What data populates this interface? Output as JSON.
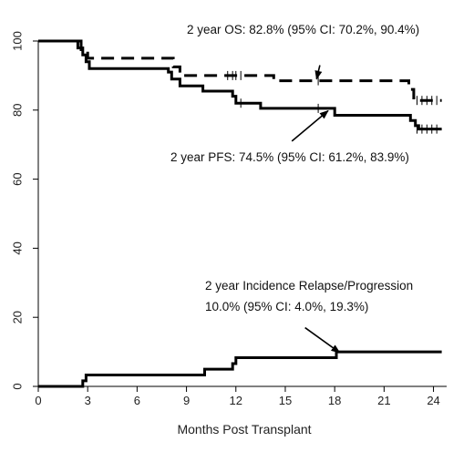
{
  "chart_data": {
    "type": "line",
    "title": "",
    "xlabel": "Months Post Transplant",
    "ylabel": "",
    "xlim": [
      0,
      24.8
    ],
    "ylim": [
      0,
      100
    ],
    "xticks": [
      0,
      3,
      6,
      9,
      12,
      15,
      18,
      21,
      24
    ],
    "yticks": [
      0,
      20,
      40,
      60,
      80,
      100
    ],
    "grid": false,
    "legend": "none",
    "series": [
      {
        "name": "",
        "style": "dashed",
        "color": "#000000",
        "steps": [
          [
            0,
            100
          ],
          [
            2.5,
            100
          ],
          [
            2.6,
            97.5
          ],
          [
            3.0,
            95
          ],
          [
            8.1,
            95
          ],
          [
            8.2,
            92.5
          ],
          [
            8.6,
            90
          ],
          [
            14.2,
            90
          ],
          [
            14.3,
            88.5
          ],
          [
            22.3,
            88.5
          ],
          [
            22.5,
            86
          ],
          [
            22.8,
            83.5
          ],
          [
            23.1,
            82.8
          ],
          [
            24.5,
            82.8
          ]
        ],
        "censors": [
          [
            11.5,
            90
          ],
          [
            11.8,
            90
          ],
          [
            12.0,
            90
          ],
          [
            12.3,
            90
          ],
          [
            17.0,
            88.5
          ],
          [
            23.0,
            82.8
          ],
          [
            23.3,
            82.8
          ],
          [
            23.6,
            82.8
          ],
          [
            23.9,
            82.8
          ],
          [
            24.2,
            82.8
          ]
        ]
      },
      {
        "name": "",
        "style": "solid",
        "color": "#000000",
        "steps": [
          [
            0,
            100
          ],
          [
            2.2,
            100
          ],
          [
            2.4,
            98
          ],
          [
            2.7,
            96
          ],
          [
            2.9,
            94
          ],
          [
            3.1,
            92
          ],
          [
            7.7,
            92
          ],
          [
            7.9,
            91
          ],
          [
            8.1,
            89
          ],
          [
            8.6,
            87
          ],
          [
            9.8,
            87
          ],
          [
            10.0,
            85.5
          ],
          [
            11.7,
            85.5
          ],
          [
            11.8,
            84
          ],
          [
            12.0,
            82
          ],
          [
            13.3,
            82
          ],
          [
            13.5,
            80.5
          ],
          [
            17.9,
            80.5
          ],
          [
            18.0,
            78.5
          ],
          [
            22.4,
            78.5
          ],
          [
            22.6,
            77
          ],
          [
            22.9,
            75.5
          ],
          [
            23.1,
            74.5
          ],
          [
            24.5,
            74.5
          ]
        ],
        "censors": [
          [
            12.3,
            82
          ],
          [
            17.0,
            80.5
          ],
          [
            23.0,
            74.5
          ],
          [
            23.3,
            74.5
          ],
          [
            23.6,
            74.5
          ],
          [
            23.9,
            74.5
          ],
          [
            24.2,
            74.5
          ]
        ]
      },
      {
        "name": "",
        "style": "solid",
        "color": "#000000",
        "steps": [
          [
            0,
            0
          ],
          [
            2.6,
            0
          ],
          [
            2.7,
            1.6
          ],
          [
            2.9,
            3.3
          ],
          [
            10.0,
            3.3
          ],
          [
            10.1,
            5
          ],
          [
            11.7,
            5
          ],
          [
            11.8,
            6.6
          ],
          [
            12.0,
            8.3
          ],
          [
            18.0,
            8.3
          ],
          [
            18.1,
            10
          ],
          [
            24.5,
            10
          ]
        ],
        "censors": []
      }
    ],
    "annotations": [
      {
        "text": "2 year OS: 82.8% (95% CI: 70.2%, 90.4%)",
        "arrow_from": [
          17.1,
          93
        ],
        "arrow_to": [
          16.9,
          89
        ]
      },
      {
        "text": "2 year PFS: 74.5% (95% CI: 61.2%, 83.9%)",
        "arrow_from": [
          15.4,
          71
        ],
        "arrow_to": [
          17.6,
          79.8
        ]
      },
      {
        "text": "2 year Incidence Relapse/Progression",
        "line2": "10.0% (95% CI: 4.0%, 19.3%)",
        "arrow_from": [
          16.2,
          17
        ],
        "arrow_to": [
          18.3,
          9.8
        ]
      }
    ]
  }
}
